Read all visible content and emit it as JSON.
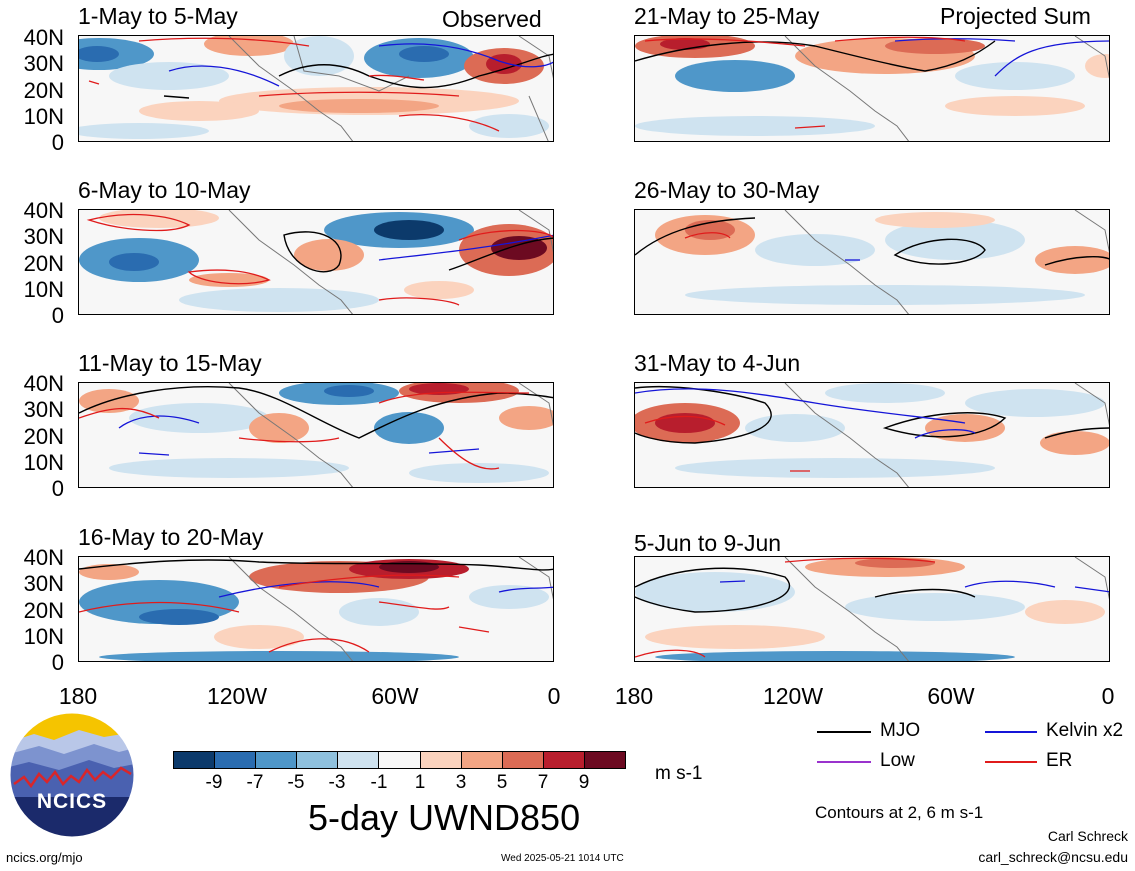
{
  "corner_tags": {
    "left": "Observed",
    "right": "Projected Sum"
  },
  "panels": [
    {
      "title": "1-May to 5-May"
    },
    {
      "title": "6-May to 10-May"
    },
    {
      "title": "11-May to 15-May"
    },
    {
      "title": "16-May to 20-May"
    },
    {
      "title": "21-May to 25-May"
    },
    {
      "title": "26-May to 30-May"
    },
    {
      "title": "31-May to 4-Jun"
    },
    {
      "title": "5-Jun to 9-Jun"
    }
  ],
  "lat_labels": [
    "40N",
    "30N",
    "20N",
    "10N",
    "0"
  ],
  "lon_labels": [
    "180",
    "120W",
    "60W",
    "0"
  ],
  "colorbar": {
    "colors": [
      "#0c3a6b",
      "#2a6cb0",
      "#4f97c9",
      "#8fc1de",
      "#cfe3f0",
      "#f7f7f7",
      "#fbd3be",
      "#f3a584",
      "#dc6b55",
      "#b81e2d",
      "#6c0a21"
    ],
    "ticks": [
      "-9",
      "-7",
      "-5",
      "-3",
      "-1",
      "1",
      "3",
      "5",
      "7",
      "9"
    ],
    "units": "m s-1"
  },
  "main_title": "5-day UWND850",
  "legend": {
    "items": [
      {
        "label": "MJO",
        "color": "#000000"
      },
      {
        "label": "Kelvin x2",
        "color": "#1515d8"
      },
      {
        "label": "Low",
        "color": "#9a32cd"
      },
      {
        "label": "ER",
        "color": "#e01b1b"
      }
    ],
    "contours_note": "Contours at 2, 6 m s-1"
  },
  "footer": {
    "left_url": "ncics.org/mjo",
    "timestamp": "Wed 2025-05-21 1014 UTC",
    "author": "Carl Schreck",
    "email": "carl_schreck@ncsu.edu"
  },
  "logo": {
    "text": "NCICS"
  }
}
